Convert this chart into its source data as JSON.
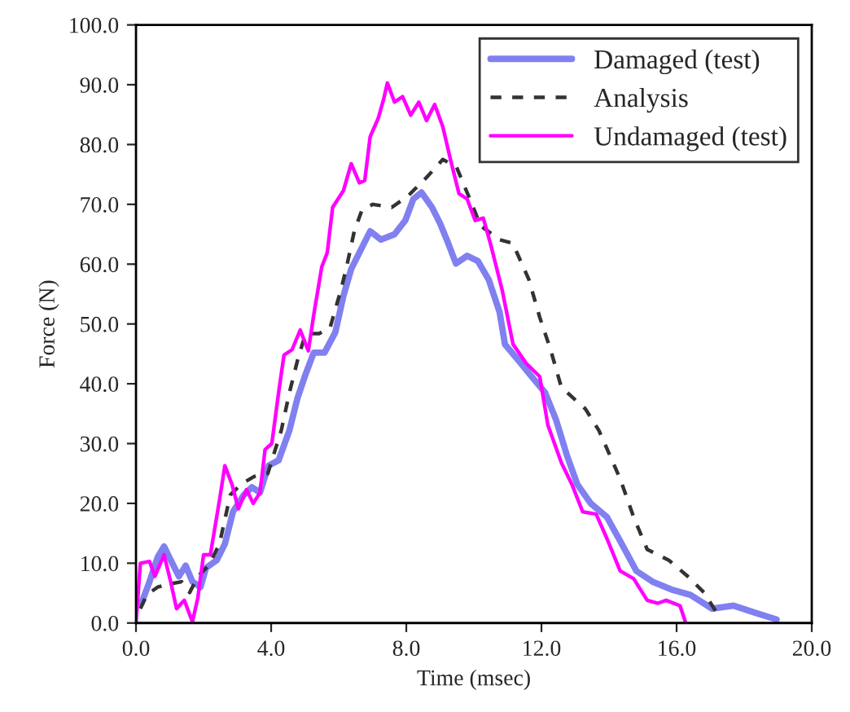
{
  "chart_data": {
    "type": "line",
    "xlabel": "Time (msec)",
    "ylabel": "Force (N)",
    "xlim": [
      0,
      20
    ],
    "ylim": [
      0,
      100
    ],
    "xticks": [
      {
        "value": 0,
        "label": "0.0"
      },
      {
        "value": 4,
        "label": "4.0"
      },
      {
        "value": 8,
        "label": "8.0"
      },
      {
        "value": 12,
        "label": "12.0"
      },
      {
        "value": 16,
        "label": "16.0"
      },
      {
        "value": 20,
        "label": "20.0"
      }
    ],
    "yticks": [
      {
        "value": 0,
        "label": "0.0"
      },
      {
        "value": 10,
        "label": "10.0"
      },
      {
        "value": 20,
        "label": "20.0"
      },
      {
        "value": 30,
        "label": "30.0"
      },
      {
        "value": 40,
        "label": "40.0"
      },
      {
        "value": 50,
        "label": "50.0"
      },
      {
        "value": 60,
        "label": "60.0"
      },
      {
        "value": 70,
        "label": "70.0"
      },
      {
        "value": 80,
        "label": "80.0"
      },
      {
        "value": 90,
        "label": "90.0"
      },
      {
        "value": 100,
        "label": "100.0"
      }
    ],
    "grid": false,
    "legend": "top right",
    "marker": "none",
    "series": [
      {
        "name": "Damaged (test)",
        "color": "#8080f0",
        "line_style": "solid",
        "x": [
          0.16,
          0.4,
          0.64,
          0.83,
          1.03,
          1.27,
          1.47,
          1.67,
          1.91,
          2.07,
          2.39,
          2.63,
          2.87,
          3.19,
          3.43,
          3.67,
          3.92,
          4.22,
          4.54,
          4.78,
          5.02,
          5.26,
          5.58,
          5.9,
          6.14,
          6.37,
          6.61,
          6.93,
          7.25,
          7.65,
          7.97,
          8.21,
          8.45,
          8.76,
          9.0,
          9.24,
          9.47,
          9.8,
          10.12,
          10.44,
          10.76,
          10.92,
          11.32,
          11.71,
          12.11,
          12.43,
          12.75,
          13.06,
          13.46,
          13.94,
          14.33,
          14.81,
          15.29,
          15.85,
          16.41,
          17.05,
          17.69,
          18.33,
          18.96
        ],
        "values": [
          3.3,
          6.9,
          11,
          12.8,
          10.5,
          7.8,
          9.6,
          6.9,
          6,
          9.2,
          10.5,
          13.2,
          18.6,
          21.4,
          22.7,
          21.8,
          26.3,
          27.2,
          32.2,
          37.6,
          41.6,
          45.2,
          45.2,
          48.6,
          54.7,
          59.2,
          61.9,
          65.5,
          64.1,
          65,
          67.3,
          70.9,
          72,
          69.5,
          66.8,
          63.5,
          60.1,
          61.4,
          60.5,
          57.4,
          52,
          46.6,
          43.9,
          41.2,
          38.5,
          34,
          28.1,
          23.2,
          20,
          17.7,
          13.7,
          8.7,
          6.9,
          5.6,
          4.7,
          2.4,
          2.9,
          1.7,
          0.6
        ]
      },
      {
        "name": "Analysis",
        "color": "#333333",
        "line_style": "dashed",
        "x": [
          0.13,
          0.32,
          0.64,
          0.96,
          1.35,
          1.59,
          1.83,
          2.15,
          2.47,
          2.79,
          3.11,
          3.5,
          3.9,
          4.3,
          4.54,
          4.78,
          5.02,
          5.42,
          5.74,
          6.06,
          6.22,
          6.46,
          6.69,
          7.01,
          7.57,
          8.05,
          8.6,
          9.08,
          9.48,
          9.88,
          10.2,
          10.76,
          11.15,
          11.63,
          11.95,
          12.27,
          12.59,
          13.3,
          13.7,
          14.02,
          14.33,
          14.73,
          15.13,
          15.77,
          16.33,
          16.81,
          17.21
        ],
        "values": [
          2.4,
          4.7,
          6,
          6.5,
          6.9,
          5.1,
          7.8,
          9.6,
          13.2,
          21.4,
          23.2,
          24.5,
          25,
          32.2,
          38.5,
          43.9,
          48.4,
          48.4,
          49.3,
          55.6,
          59.2,
          65.5,
          69.1,
          70,
          69.5,
          71.4,
          74.5,
          77.5,
          76.3,
          70.9,
          66.4,
          64.1,
          63.5,
          57.4,
          51.1,
          45.7,
          39.4,
          35.8,
          32.2,
          28.1,
          24.1,
          17.7,
          12.3,
          10.5,
          7.8,
          5.1,
          1.5
        ]
      },
      {
        "name": "Undamaged (test)",
        "color": "#ff00ff",
        "line_style": "solid",
        "x": [
          0.0,
          0.13,
          0.4,
          0.56,
          0.83,
          1.03,
          1.2,
          1.43,
          1.67,
          1.83,
          2.0,
          2.2,
          2.47,
          2.63,
          2.84,
          3.03,
          3.27,
          3.47,
          3.67,
          3.82,
          4.02,
          4.22,
          4.38,
          4.62,
          4.86,
          5.1,
          5.26,
          5.5,
          5.66,
          5.82,
          6.14,
          6.37,
          6.61,
          6.77,
          6.93,
          7.17,
          7.33,
          7.44,
          7.65,
          7.89,
          8.13,
          8.37,
          8.6,
          8.84,
          9.08,
          9.32,
          9.56,
          9.8,
          10.04,
          10.28,
          10.52,
          10.84,
          11.16,
          11.55,
          11.95,
          12.19,
          12.59,
          12.9,
          13.22,
          13.62,
          13.94,
          14.33,
          14.73,
          15.13,
          15.45,
          15.69,
          16.1,
          16.26
        ],
        "values": [
          0,
          10,
          10.3,
          7.8,
          11.4,
          6.8,
          2.4,
          3.8,
          0.2,
          4.2,
          11.4,
          11.4,
          20.5,
          26.3,
          23.2,
          19.1,
          22.3,
          20,
          21.8,
          29,
          30,
          38.5,
          44.8,
          45.7,
          49,
          45.5,
          51.5,
          59.6,
          61.9,
          69.5,
          72.3,
          76.8,
          73.6,
          74,
          81.3,
          84.4,
          87.6,
          90.3,
          87.1,
          88,
          84.9,
          87.1,
          84,
          86.7,
          83,
          77.2,
          71.8,
          70.9,
          67.3,
          67.7,
          62.8,
          55.6,
          46.6,
          43.4,
          41.2,
          33.1,
          26.8,
          23.2,
          18.6,
          18.2,
          14.1,
          8.7,
          7.4,
          3.8,
          3.3,
          3.8,
          2.9,
          0.2
        ]
      }
    ]
  }
}
